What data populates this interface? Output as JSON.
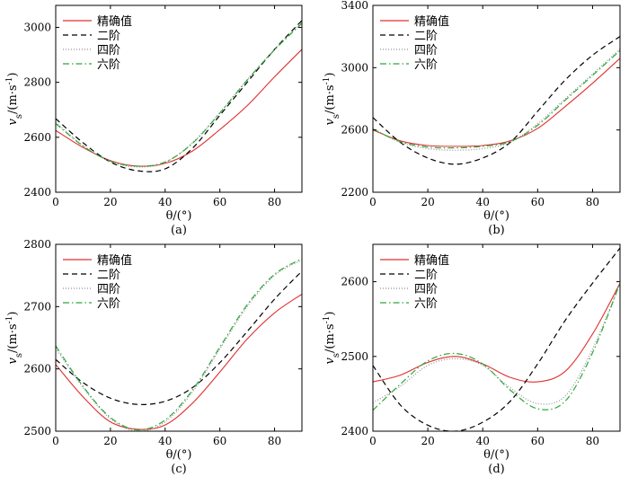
{
  "figure": {
    "title": ""
  },
  "chart_data": [
    {
      "type": "line",
      "panel_label": "(a)",
      "xlabel": "θ/(°)",
      "ylabel": "v_s/(m·s⁻¹)",
      "ylabel_main": "v",
      "ylabel_sub": "s",
      "ylabel_unit": "/(m·s",
      "ylabel_sup": "-1",
      "ylabel_close": ")",
      "xlim": [
        0,
        90
      ],
      "ylim": [
        2400,
        3080
      ],
      "xticks": [
        0,
        20,
        40,
        60,
        80
      ],
      "yticks": [
        2400,
        2600,
        2800,
        3000
      ],
      "xtick_labels": [
        "0",
        "20",
        "40",
        "60",
        "80"
      ],
      "ytick_labels": [
        "2400",
        "2600",
        "2800",
        "3000"
      ],
      "legend_position": "top-left",
      "x": [
        0,
        10,
        20,
        30,
        40,
        50,
        60,
        70,
        80,
        90
      ],
      "series": [
        {
          "name": "精确值",
          "color": "#e03030",
          "dash": "",
          "values": [
            2625,
            2563,
            2515,
            2495,
            2505,
            2550,
            2628,
            2715,
            2820,
            2920
          ]
        },
        {
          "name": "二阶",
          "color": "#000000",
          "dash": "6,4",
          "values": [
            2668,
            2580,
            2510,
            2478,
            2485,
            2560,
            2680,
            2800,
            2920,
            3025
          ]
        },
        {
          "name": "四阶",
          "color": "#909090",
          "dash": "1,2",
          "values": [
            2655,
            2570,
            2512,
            2492,
            2508,
            2580,
            2690,
            2810,
            2920,
            3018
          ]
        },
        {
          "name": "六阶",
          "color": "#2ea83a",
          "dash": "7,3,1.5,3",
          "values": [
            2650,
            2568,
            2513,
            2495,
            2510,
            2578,
            2688,
            2808,
            2918,
            3015
          ]
        }
      ]
    },
    {
      "type": "line",
      "panel_label": "(b)",
      "xlabel": "θ/(°)",
      "ylabel": "v_s/(m·s⁻¹)",
      "ylabel_main": "v",
      "ylabel_sub": "s",
      "ylabel_unit": "/(m·s",
      "ylabel_sup": "-1",
      "ylabel_close": ")",
      "xlim": [
        0,
        90
      ],
      "ylim": [
        2200,
        3400
      ],
      "xticks": [
        0,
        20,
        40,
        60,
        80
      ],
      "yticks": [
        2200,
        2600,
        3000,
        3400
      ],
      "xtick_labels": [
        "0",
        "20",
        "40",
        "60",
        "80"
      ],
      "ytick_labels": [
        "2200",
        "2600",
        "3000",
        "3400"
      ],
      "legend_position": "top-left",
      "x": [
        0,
        10,
        20,
        30,
        40,
        50,
        60,
        70,
        80,
        90
      ],
      "series": [
        {
          "name": "精确值",
          "color": "#e03030",
          "dash": "",
          "values": [
            2600,
            2530,
            2500,
            2495,
            2500,
            2530,
            2610,
            2750,
            2900,
            3060
          ]
        },
        {
          "name": "二阶",
          "color": "#000000",
          "dash": "6,4",
          "values": [
            2680,
            2520,
            2420,
            2380,
            2420,
            2520,
            2720,
            2920,
            3080,
            3200
          ]
        },
        {
          "name": "四阶",
          "color": "#909090",
          "dash": "1,2",
          "values": [
            2610,
            2520,
            2480,
            2470,
            2480,
            2520,
            2640,
            2800,
            2960,
            3120
          ]
        },
        {
          "name": "六阶",
          "color": "#2ea83a",
          "dash": "7,3,1.5,3",
          "values": [
            2605,
            2525,
            2490,
            2485,
            2495,
            2525,
            2630,
            2790,
            2950,
            3110
          ]
        }
      ]
    },
    {
      "type": "line",
      "panel_label": "(c)",
      "xlabel": "θ/(°)",
      "ylabel": "v_s/(m·s⁻¹)",
      "ylabel_main": "v",
      "ylabel_sub": "s",
      "ylabel_unit": "/(m·s",
      "ylabel_sup": "-1",
      "ylabel_close": ")",
      "xlim": [
        0,
        90
      ],
      "ylim": [
        2500,
        2800
      ],
      "xticks": [
        0,
        20,
        40,
        60,
        80
      ],
      "yticks": [
        2500,
        2600,
        2700,
        2800
      ],
      "xtick_labels": [
        "0",
        "20",
        "40",
        "60",
        "80"
      ],
      "ytick_labels": [
        "2500",
        "2600",
        "2700",
        "2800"
      ],
      "legend_position": "top-left",
      "x": [
        0,
        10,
        20,
        30,
        40,
        50,
        60,
        70,
        80,
        90
      ],
      "series": [
        {
          "name": "精确值",
          "color": "#e03030",
          "dash": "",
          "values": [
            2607,
            2555,
            2515,
            2503,
            2510,
            2545,
            2595,
            2648,
            2690,
            2720
          ]
        },
        {
          "name": "二阶",
          "color": "#000000",
          "dash": "6,4",
          "values": [
            2615,
            2578,
            2553,
            2543,
            2548,
            2570,
            2610,
            2660,
            2712,
            2757
          ]
        },
        {
          "name": "四阶",
          "color": "#909090",
          "dash": "1,2",
          "values": [
            2633,
            2570,
            2520,
            2500,
            2515,
            2563,
            2632,
            2700,
            2750,
            2775
          ]
        },
        {
          "name": "六阶",
          "color": "#2ea83a",
          "dash": "7,3,1.5,3",
          "values": [
            2637,
            2572,
            2522,
            2502,
            2518,
            2566,
            2635,
            2703,
            2752,
            2777
          ]
        }
      ]
    },
    {
      "type": "line",
      "panel_label": "(d)",
      "xlabel": "θ/(°)",
      "ylabel": "v_s/(m·s⁻¹)",
      "ylabel_main": "v",
      "ylabel_sub": "s",
      "ylabel_unit": "/(m·s",
      "ylabel_sup": "-1",
      "ylabel_close": ")",
      "xlim": [
        0,
        90
      ],
      "ylim": [
        2400,
        2650
      ],
      "xticks": [
        0,
        20,
        40,
        60,
        80
      ],
      "yticks": [
        2400,
        2500,
        2600
      ],
      "xtick_labels": [
        "0",
        "20",
        "40",
        "60",
        "80"
      ],
      "ytick_labels": [
        "2400",
        "2500",
        "2600"
      ],
      "legend_position": "top-left",
      "x": [
        0,
        10,
        20,
        30,
        40,
        50,
        60,
        70,
        80,
        90
      ],
      "series": [
        {
          "name": "精确值",
          "color": "#e03030",
          "dash": "",
          "values": [
            2466,
            2475,
            2492,
            2500,
            2490,
            2472,
            2466,
            2480,
            2530,
            2598
          ]
        },
        {
          "name": "二阶",
          "color": "#000000",
          "dash": "6,4",
          "values": [
            2488,
            2435,
            2408,
            2400,
            2412,
            2440,
            2490,
            2548,
            2598,
            2645
          ]
        },
        {
          "name": "四阶",
          "color": "#909090",
          "dash": "1,2",
          "values": [
            2438,
            2460,
            2488,
            2497,
            2488,
            2458,
            2437,
            2447,
            2510,
            2598
          ]
        },
        {
          "name": "六阶",
          "color": "#2ea83a",
          "dash": "7,3,1.5,3",
          "values": [
            2428,
            2463,
            2494,
            2504,
            2490,
            2455,
            2430,
            2440,
            2505,
            2598
          ]
        }
      ]
    }
  ]
}
